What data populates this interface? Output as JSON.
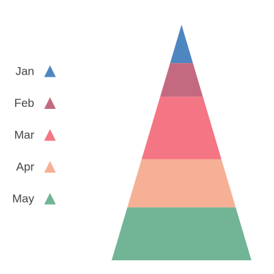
{
  "chart_data": {
    "type": "pyramid",
    "categories": [
      "Jan",
      "Feb",
      "Mar",
      "Apr",
      "May"
    ],
    "values": [
      8,
      7,
      13,
      10,
      11
    ],
    "order": "top-to-bottom",
    "legend": {
      "placement": "left",
      "marker": "triangle",
      "entries": [
        "Jan",
        "Feb",
        "Mar",
        "Apr",
        "May"
      ]
    },
    "colors": [
      "#4e86c0",
      "#c46a80",
      "#f47584",
      "#f6b095",
      "#72b496"
    ],
    "grid": false
  }
}
